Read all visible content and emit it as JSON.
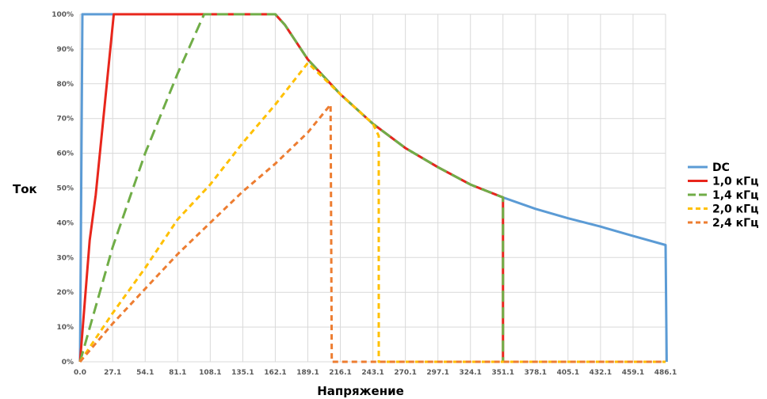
{
  "chart_data": {
    "type": "line",
    "xlabel": "Напряжение",
    "ylabel": "Ток",
    "x_ticks": [
      "0.0",
      "27.1",
      "54.1",
      "81.1",
      "108.1",
      "135.1",
      "162.1",
      "189.1",
      "216.1",
      "243.1",
      "270.1",
      "297.1",
      "324.1",
      "351.1",
      "378.1",
      "405.1",
      "432.1",
      "459.1",
      "486.1"
    ],
    "y_ticks": [
      "0%",
      "10%",
      "20%",
      "30%",
      "40%",
      "50%",
      "60%",
      "70%",
      "80%",
      "90%",
      "100%"
    ],
    "xlim": [
      0,
      486.1
    ],
    "ylim": [
      0,
      100
    ],
    "grid": true,
    "legend_position": "right",
    "series": [
      {
        "name": "DC",
        "color": "#5B9BD5",
        "dash": "solid",
        "points": [
          [
            0,
            0
          ],
          [
            2,
            100
          ],
          [
            162.1,
            100
          ],
          [
            170,
            97
          ],
          [
            189.1,
            87
          ],
          [
            216.1,
            77
          ],
          [
            243.1,
            68.5
          ],
          [
            270.1,
            61.5
          ],
          [
            297.1,
            56
          ],
          [
            324.1,
            51
          ],
          [
            351.1,
            47.3
          ],
          [
            378.1,
            44
          ],
          [
            405.1,
            41.3
          ],
          [
            432.1,
            38.9
          ],
          [
            459.1,
            36.2
          ],
          [
            486.1,
            33.6
          ],
          [
            487,
            0
          ]
        ]
      },
      {
        "name": "1,0 кГц",
        "color": "#E8261C",
        "dash": "solid",
        "points": [
          [
            0,
            0
          ],
          [
            8,
            35
          ],
          [
            13,
            48
          ],
          [
            28,
            100
          ],
          [
            162.1,
            100
          ],
          [
            170,
            97
          ],
          [
            189.1,
            87
          ],
          [
            216.1,
            77
          ],
          [
            243.1,
            68.5
          ],
          [
            270.1,
            61.5
          ],
          [
            297.1,
            56
          ],
          [
            324.1,
            51
          ],
          [
            351.1,
            47.3
          ],
          [
            351.1,
            0
          ]
        ]
      },
      {
        "name": "1,4 кГц",
        "color": "#70AD47",
        "dash": "long-dash",
        "points": [
          [
            0,
            0
          ],
          [
            27.1,
            33
          ],
          [
            54.1,
            60
          ],
          [
            81.1,
            83
          ],
          [
            103,
            100
          ],
          [
            162.1,
            100
          ],
          [
            170,
            97
          ],
          [
            189.1,
            87
          ],
          [
            216.1,
            77
          ],
          [
            243.1,
            68.5
          ],
          [
            270.1,
            61.5
          ],
          [
            297.1,
            56
          ],
          [
            324.1,
            51
          ],
          [
            351.1,
            47.3
          ],
          [
            351.1,
            0
          ]
        ]
      },
      {
        "name": "2,0 кГц",
        "color": "#FFC000",
        "dash": "dash",
        "points": [
          [
            0,
            0
          ],
          [
            27.1,
            14
          ],
          [
            54.1,
            27
          ],
          [
            81.1,
            41
          ],
          [
            108.1,
            51
          ],
          [
            135.1,
            63
          ],
          [
            162.1,
            74
          ],
          [
            189.1,
            86
          ],
          [
            216.1,
            77
          ],
          [
            243.1,
            68.5
          ],
          [
            248,
            65
          ],
          [
            248,
            0
          ],
          [
            486.1,
            0
          ]
        ]
      },
      {
        "name": "2,4 кГц",
        "color": "#ED7D31",
        "dash": "dash",
        "points": [
          [
            0,
            0
          ],
          [
            27.1,
            11
          ],
          [
            54.1,
            21
          ],
          [
            81.1,
            31
          ],
          [
            108.1,
            40
          ],
          [
            135.1,
            49
          ],
          [
            162.1,
            57
          ],
          [
            189.1,
            66
          ],
          [
            208,
            74
          ],
          [
            209,
            0
          ],
          [
            486.1,
            0
          ]
        ]
      }
    ]
  }
}
